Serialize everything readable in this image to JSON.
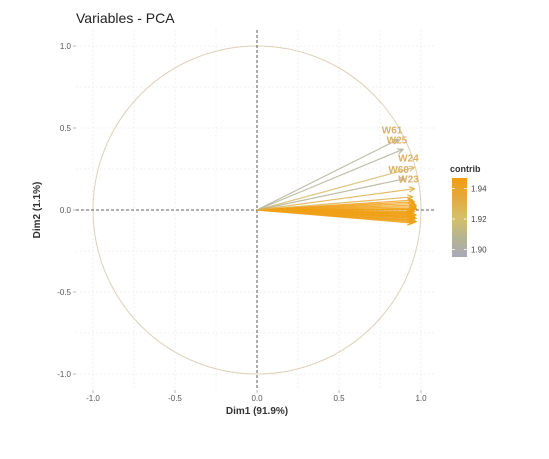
{
  "chart_data": {
    "type": "scatter",
    "title": "Variables - PCA",
    "xlabel": "Dim1 (91.9%)",
    "ylabel": "Dim2 (1.1%)",
    "xlim": [
      -1.1,
      1.1
    ],
    "ylim": [
      -1.1,
      1.1
    ],
    "xticks": [
      "-1.0",
      "-0.5",
      "0.0",
      "0.5",
      "1.0"
    ],
    "yticks": [
      "-1.0",
      "-0.5",
      "0.0",
      "0.5",
      "1.0"
    ],
    "grid": true,
    "correlation_circle": true,
    "reference_lines": [
      0,
      0
    ],
    "labeled_variables": [
      {
        "name": "W61",
        "x": 0.86,
        "y": 0.43,
        "contrib": 1.905
      },
      {
        "name": "W25",
        "x": 0.89,
        "y": 0.37,
        "contrib": 1.905
      },
      {
        "name": "W24",
        "x": 0.96,
        "y": 0.26,
        "contrib": 1.92
      },
      {
        "name": "W60",
        "x": 0.9,
        "y": 0.19,
        "contrib": 1.905
      },
      {
        "name": "W23",
        "x": 0.96,
        "y": 0.13,
        "contrib": 1.93
      }
    ],
    "other_variables": {
      "x": [
        0.95,
        0.95,
        0.96,
        0.96,
        0.97,
        0.97,
        0.97,
        0.96,
        0.96,
        0.95,
        0.95,
        0.94,
        0.97,
        0.96,
        0.95,
        0.96,
        0.97,
        0.96,
        0.95,
        0.96,
        0.97,
        0.96,
        0.95,
        0.96,
        0.97,
        0.95
      ],
      "y": [
        0.08,
        0.06,
        0.05,
        0.04,
        0.03,
        0.02,
        0.01,
        0.0,
        -0.01,
        -0.015,
        -0.02,
        -0.025,
        -0.03,
        -0.035,
        -0.04,
        -0.045,
        -0.05,
        -0.055,
        -0.06,
        -0.065,
        -0.07,
        -0.075,
        -0.08,
        -0.04,
        0.005,
        -0.02
      ],
      "contrib": [
        1.93,
        1.94,
        1.945,
        1.945,
        1.945,
        1.945,
        1.945,
        1.945,
        1.945,
        1.945,
        1.945,
        1.945,
        1.945,
        1.945,
        1.945,
        1.945,
        1.945,
        1.945,
        1.94,
        1.945,
        1.945,
        1.94,
        1.945,
        1.945,
        1.945,
        1.945
      ]
    },
    "legend": {
      "title": "contrib",
      "placement": "right",
      "ticks": [
        "1.94",
        "1.92",
        "1.90"
      ],
      "tick_values": [
        1.94,
        1.92,
        1.9
      ],
      "range": [
        1.895,
        1.947
      ],
      "colors": [
        "#A9A9B9",
        "#B6B58F",
        "#D6BF6A",
        "#E4A93D",
        "#F29E0E"
      ]
    },
    "colors": {
      "axis_line": "#333333",
      "grid": "#E6E6E6",
      "circle": "#DDD2B8",
      "text": "#DDB066"
    }
  }
}
